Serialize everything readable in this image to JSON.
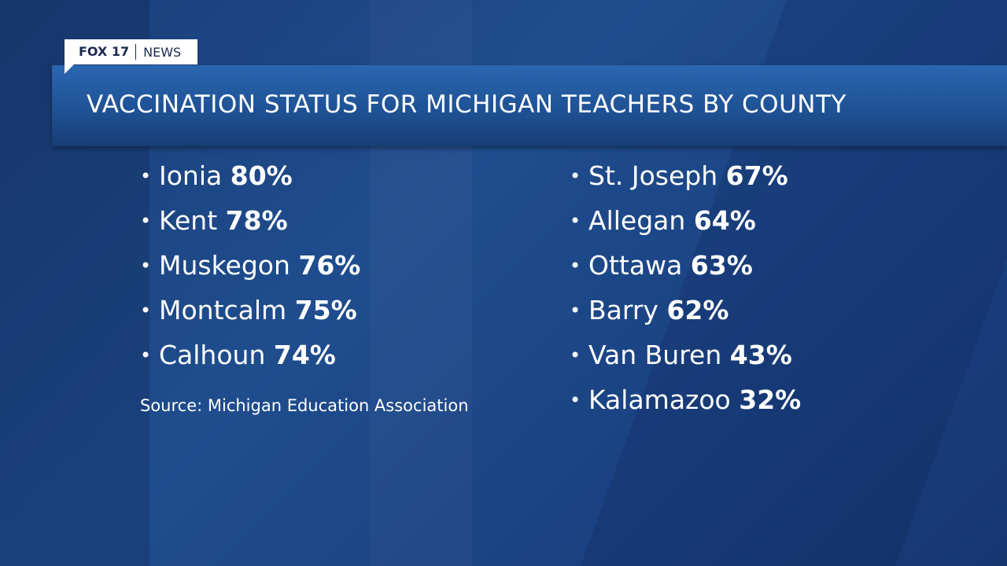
{
  "logo": {
    "brand": "FOX 17",
    "section": "NEWS"
  },
  "title": "VACCINATION STATUS FOR MICHIGAN TEACHERS BY COUNTY",
  "columns": [
    [
      {
        "county": "Ionia",
        "value": "80%"
      },
      {
        "county": "Kent",
        "value": "78%"
      },
      {
        "county": "Muskegon",
        "value": "76%"
      },
      {
        "county": "Montcalm",
        "value": "75%"
      },
      {
        "county": "Calhoun",
        "value": "74%"
      }
    ],
    [
      {
        "county": "St. Joseph",
        "value": "67%"
      },
      {
        "county": "Allegan",
        "value": "64%"
      },
      {
        "county": "Ottawa",
        "value": "63%"
      },
      {
        "county": "Barry",
        "value": "62%"
      },
      {
        "county": "Van Buren",
        "value": "43%"
      },
      {
        "county": "Kalamazoo",
        "value": "32%"
      }
    ]
  ],
  "source": "Source: Michigan Education Association"
}
